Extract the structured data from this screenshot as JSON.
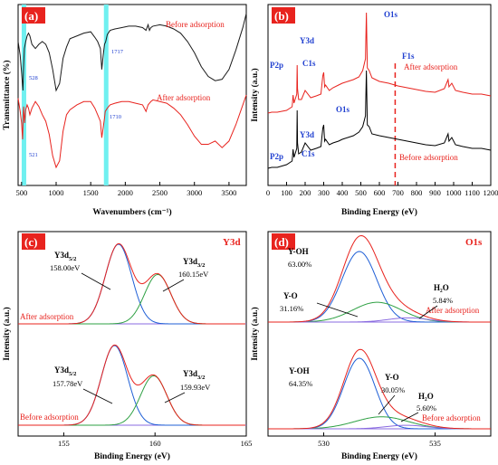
{
  "chart_data": [
    {
      "panel": "(a)",
      "type": "line",
      "xlabel": "Wavenumbers (cm⁻¹)",
      "ylabel": "Transmittance (%)",
      "xlim": [
        450,
        3750
      ],
      "xticks": [
        500,
        1000,
        1500,
        2000,
        2500,
        3000,
        3500
      ],
      "highlight_bands": [
        528,
        1717
      ],
      "series": [
        {
          "name": "Before adsorption",
          "color": "#1a1a1a",
          "offset": 0,
          "x": [
            450,
            480,
            500,
            520,
            528,
            540,
            560,
            580,
            600,
            620,
            650,
            700,
            750,
            800,
            850,
            900,
            950,
            1000,
            1050,
            1100,
            1150,
            1200,
            1300,
            1400,
            1500,
            1560,
            1600,
            1640,
            1660,
            1680,
            1700,
            1717,
            1740,
            1780,
            1850,
            1950,
            2050,
            2150,
            2250,
            2300,
            2330,
            2350,
            2370,
            2400,
            2500,
            2600,
            2700,
            2800,
            2900,
            3000,
            3100,
            3200,
            3300,
            3400,
            3500,
            3600,
            3700,
            3750
          ],
          "y": [
            60,
            50,
            38,
            25,
            40,
            55,
            60,
            64,
            66,
            64,
            58,
            55,
            58,
            60,
            58,
            52,
            40,
            25,
            30,
            48,
            56,
            62,
            64,
            66,
            67,
            63,
            60,
            55,
            40,
            50,
            58,
            60,
            65,
            68,
            69,
            70,
            71,
            71,
            70,
            68,
            72,
            68,
            70,
            71,
            72,
            71,
            69,
            66,
            60,
            52,
            42,
            35,
            32,
            33,
            40,
            54,
            70,
            80
          ]
        },
        {
          "name": "After adsorption",
          "color": "#e8231e",
          "offset": 0,
          "x": [
            450,
            480,
            500,
            515,
            521,
            530,
            545,
            560,
            580,
            600,
            620,
            650,
            700,
            750,
            800,
            850,
            900,
            950,
            1000,
            1050,
            1100,
            1150,
            1200,
            1300,
            1400,
            1500,
            1560,
            1600,
            1640,
            1660,
            1680,
            1700,
            1710,
            1740,
            1780,
            1850,
            1950,
            2050,
            2150,
            2250,
            2300,
            2330,
            2350,
            2370,
            2400,
            2500,
            2600,
            2700,
            2800,
            2900,
            3000,
            3100,
            3200,
            3300,
            3400,
            3500,
            3600,
            3700,
            3750
          ],
          "y": [
            20,
            12,
            5,
            -5,
            5,
            15,
            5,
            13,
            16,
            14,
            10,
            14,
            18,
            15,
            10,
            6,
            -2,
            -15,
            -22,
            -18,
            0,
            10,
            13,
            16,
            18,
            18,
            14,
            10,
            6,
            -4,
            2,
            8,
            12,
            14,
            16,
            17,
            18,
            18,
            17,
            16,
            12,
            16,
            17,
            18,
            19,
            18,
            17,
            14,
            10,
            4,
            -3,
            -8,
            -8,
            -6,
            -10,
            -6,
            4,
            16,
            22
          ]
        }
      ],
      "annotations": [
        "528",
        "1717",
        "521",
        "1710"
      ]
    },
    {
      "panel": "(b)",
      "type": "line",
      "xlabel": "Binding Energy (eV)",
      "ylabel": "Intensity (a.u.)",
      "xlim": [
        0,
        1200
      ],
      "xticks": [
        0,
        100,
        200,
        300,
        400,
        500,
        600,
        700,
        800,
        900,
        1000,
        1100,
        1200
      ],
      "dashed_line_x": 685,
      "series": [
        {
          "name": "After adsorption",
          "color": "#e8231e",
          "x": [
            0,
            20,
            50,
            100,
            130,
            135,
            140,
            155,
            157,
            159,
            165,
            180,
            200,
            230,
            260,
            285,
            295,
            300,
            305,
            310,
            330,
            350,
            380,
            400,
            430,
            460,
            490,
            510,
            525,
            530,
            535,
            545,
            560,
            600,
            650,
            700,
            750,
            800,
            850,
            900,
            950,
            970,
            975,
            990,
            1010,
            1050,
            1100,
            1150,
            1200
          ],
          "y": [
            1.5,
            1.6,
            1.6,
            1.8,
            2.2,
            3.5,
            2.6,
            3.6,
            6.8,
            4.2,
            3.0,
            3.0,
            4.0,
            3.2,
            3.4,
            3.6,
            5.6,
            6.0,
            4.4,
            4.6,
            4.0,
            4.3,
            4.6,
            4.8,
            5.0,
            5.2,
            5.5,
            6.2,
            7.5,
            12.6,
            6.5,
            6.2,
            5.4,
            5.0,
            4.8,
            4.5,
            4.3,
            4.1,
            3.9,
            3.8,
            4.2,
            5.2,
            4.4,
            4.8,
            4.0,
            3.8,
            3.6,
            3.6,
            3.4
          ]
        },
        {
          "name": "Before adsorption",
          "color": "#000000",
          "x": [
            0,
            20,
            50,
            100,
            130,
            135,
            140,
            155,
            157,
            159,
            165,
            180,
            200,
            230,
            260,
            285,
            295,
            300,
            305,
            310,
            330,
            350,
            380,
            400,
            430,
            460,
            490,
            510,
            525,
            530,
            535,
            545,
            560,
            600,
            650,
            700,
            750,
            800,
            850,
            900,
            950,
            970,
            975,
            990,
            1010,
            1050,
            1100,
            1150,
            1200
          ],
          "y": [
            -4.6,
            -4.5,
            -4.5,
            -4.2,
            -3.8,
            -2.5,
            -3.4,
            -2.4,
            1.8,
            -1.8,
            -3.0,
            -2.8,
            -1.8,
            -2.6,
            -2.4,
            -2.2,
            -0.2,
            0.2,
            -1.6,
            -1.4,
            -2.0,
            -1.8,
            -1.6,
            -1.4,
            -1.2,
            -1.0,
            -0.6,
            0.0,
            1.2,
            6.2,
            0.2,
            0.0,
            -0.8,
            -1.0,
            -1.2,
            -1.4,
            -1.6,
            -1.8,
            -2.0,
            -2.1,
            -1.8,
            -0.8,
            -1.6,
            -1.2,
            -2.0,
            -2.2,
            -2.4,
            -2.4,
            -2.6
          ]
        }
      ],
      "labels_after": [
        "P2p",
        "Y3d",
        "C1s",
        "O1s",
        "F1s"
      ],
      "labels_before": [
        "P2p",
        "Y3d",
        "C1s",
        "O1s"
      ]
    },
    {
      "panel": "(c)",
      "title": "Y3d",
      "type": "line",
      "xlabel": "Binding Energy (eV)",
      "ylabel": "Intensity (a.u.)",
      "xlim": [
        152.5,
        165
      ],
      "xticks": [
        155,
        160,
        165
      ],
      "groups": [
        {
          "name": "After adsorption",
          "peaks": [
            {
              "label": "Y3d5/2",
              "center": 158.0,
              "value": "158.00eV"
            },
            {
              "label": "Y3d3/2",
              "center": 160.15,
              "value": "160.15eV"
            }
          ]
        },
        {
          "name": "Before adsorption",
          "peaks": [
            {
              "label": "Y3d5/2",
              "center": 157.78,
              "value": "157.78eV"
            },
            {
              "label": "Y3d3/2",
              "center": 159.93,
              "value": "159.93eV"
            }
          ]
        }
      ]
    },
    {
      "panel": "(d)",
      "title": "O1s",
      "type": "line",
      "xlabel": "Binding Energy (eV)",
      "ylabel": "Intensity (a.u.)",
      "xlim": [
        527.5,
        537.5
      ],
      "xticks": [
        530,
        535
      ],
      "groups": [
        {
          "name": "After adsorption",
          "peaks": [
            {
              "label": "Y-OH",
              "center": 531.6,
              "pct": "63.00%"
            },
            {
              "label": "Y-O",
              "center": 532.4,
              "pct": "31.16%"
            },
            {
              "label": "H₂O",
              "center": 533.8,
              "pct": "5.84%"
            }
          ]
        },
        {
          "name": "Before adsorption",
          "peaks": [
            {
              "label": "Y-OH",
              "center": 531.6,
              "pct": "64.35%"
            },
            {
              "label": "Y-O",
              "center": 532.6,
              "pct": "30.05%"
            },
            {
              "label": "H₂O",
              "center": 533.7,
              "pct": "5.60%"
            }
          ]
        }
      ]
    }
  ],
  "text": {
    "a_tag": "(a)",
    "a_before": "Before adsorption",
    "a_after": "After adsorption",
    "a_xlabel": "Wavenumbers (cm⁻¹)",
    "a_ylabel": "Transmittance (%)",
    "a_528": "528",
    "a_1717": "1717",
    "a_521": "521",
    "a_1710": "1710",
    "b_tag": "(b)",
    "b_after": "After adsorption",
    "b_before": "Before adsorption",
    "b_xlabel": "Binding Energy (eV)",
    "b_ylabel": "Intensity (a.u.)",
    "b_o1s_top": "O1s",
    "b_o1s_bot": "O1s",
    "b_f1s": "F1s",
    "b_y3d_top": "Y3d",
    "b_y3d_bot": "Y3d",
    "b_p2p_top": "P2p",
    "b_p2p_bot": "P2p",
    "b_c1s_top": "C1s",
    "b_c1s_bot": "C1s",
    "c_tag": "(c)",
    "c_title": "Y3d",
    "c_after": "After adsorption",
    "c_before": "Before adsorption",
    "c_xlabel": "Binding Energy (eV)",
    "c_ylabel": "Intensity (a.u.)",
    "c_y3d52_a": "Y3d",
    "c_y3d52_a_sub": "5/2",
    "c_y3d52_a_val": "158.00eV",
    "c_y3d32_a": "Y3d",
    "c_y3d32_a_sub": "3/2",
    "c_y3d32_a_val": "160.15eV",
    "c_y3d52_b": "Y3d",
    "c_y3d52_b_sub": "5/2",
    "c_y3d52_b_val": "157.78eV",
    "c_y3d32_b": "Y3d",
    "c_y3d32_b_sub": "3/2",
    "c_y3d32_b_val": "159.93eV",
    "d_tag": "(d)",
    "d_title": "O1s",
    "d_after": "After adsorption",
    "d_before": "Before adsorption",
    "d_xlabel": "Binding Energy (eV)",
    "d_ylabel": "Intensity (a.u.)",
    "d_yoh_a": "Y-OH",
    "d_yoh_a_pct": "63.00%",
    "d_yo_a": "Y-O",
    "d_yo_a_pct": "31.16%",
    "d_h2o_a": "H₂O",
    "d_h2o_a_pct": "5.84%",
    "d_yoh_b": "Y-OH",
    "d_yoh_b_pct": "64.35%",
    "d_yo_b": "Y-O",
    "d_yo_b_pct": "30.05%",
    "d_h2o_b": "H₂O",
    "d_h2o_b_pct": "5.60%"
  },
  "colors": {
    "red": "#e8231e",
    "blue": "#1f5fd6",
    "green": "#2ea043",
    "purple": "#8a6be0",
    "cyan": "#6ff0f0",
    "tag_bg": "#e8231e"
  }
}
